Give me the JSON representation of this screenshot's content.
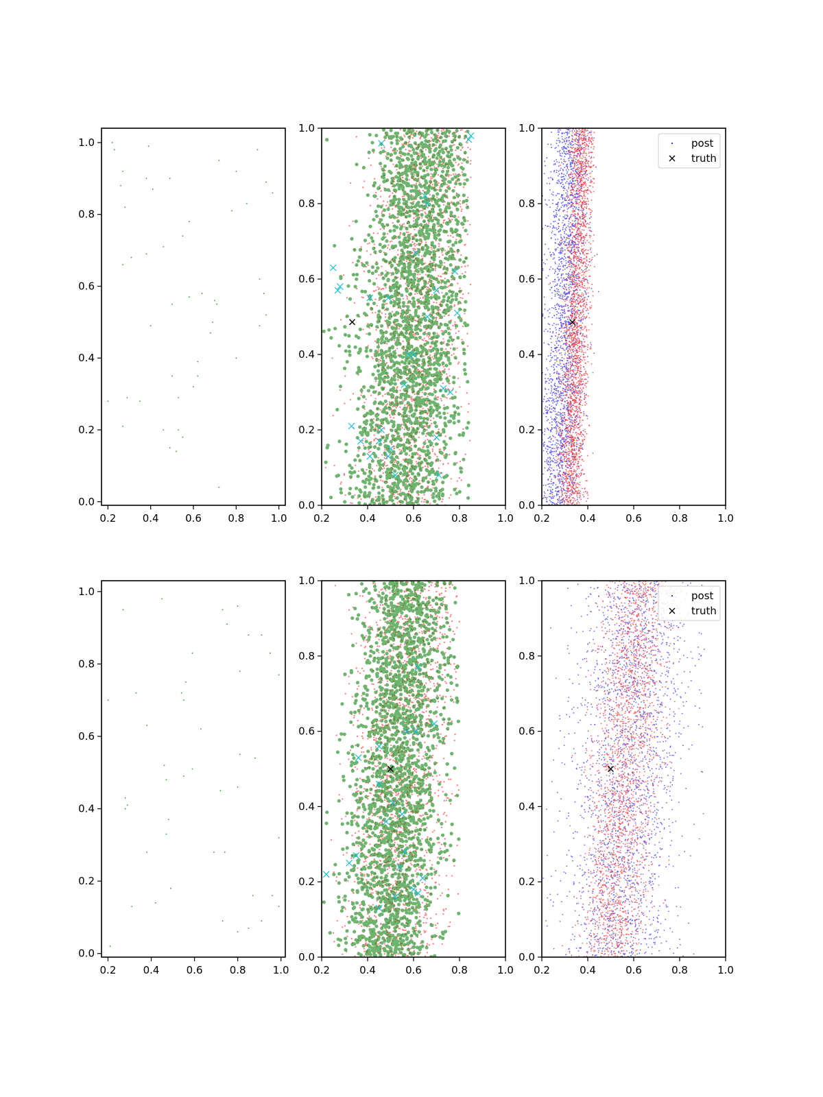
{
  "chart_data": [
    {
      "id": "top-left",
      "type": "scatter",
      "xlim": [
        0.17,
        1.03
      ],
      "ylim": [
        -0.01,
        1.04
      ],
      "xticks": [
        "0.2",
        "0.4",
        "0.6",
        "0.8",
        "1.0"
      ],
      "yticks": [
        "0.0",
        "0.2",
        "0.4",
        "0.6",
        "0.8",
        "1.0"
      ],
      "series": [
        {
          "color": "#2ca02c",
          "marker": "dot",
          "seed": 11,
          "points": [
            [
              0.22,
              1.0
            ],
            [
              0.23,
              0.98
            ],
            [
              0.39,
              0.99
            ],
            [
              0.9,
              0.98
            ],
            [
              0.72,
              0.95
            ],
            [
              0.27,
              0.92
            ],
            [
              0.49,
              0.9
            ],
            [
              0.94,
              0.89
            ],
            [
              0.8,
              0.92
            ],
            [
              0.26,
              0.88
            ],
            [
              0.38,
              0.9
            ],
            [
              0.41,
              0.87
            ],
            [
              0.97,
              0.86
            ],
            [
              0.85,
              0.83
            ],
            [
              0.28,
              0.82
            ],
            [
              0.78,
              0.81
            ],
            [
              0.58,
              0.78
            ],
            [
              0.46,
              0.71
            ],
            [
              0.55,
              0.74
            ],
            [
              0.31,
              0.68
            ],
            [
              0.38,
              0.69
            ],
            [
              0.27,
              0.66
            ],
            [
              0.91,
              0.62
            ],
            [
              0.93,
              0.58
            ],
            [
              0.64,
              0.58
            ],
            [
              0.58,
              0.57
            ],
            [
              0.5,
              0.55
            ],
            [
              0.7,
              0.56
            ],
            [
              0.71,
              0.55
            ],
            [
              0.94,
              0.52
            ],
            [
              0.69,
              0.5
            ],
            [
              0.4,
              0.49
            ],
            [
              0.68,
              0.47
            ],
            [
              0.91,
              0.49
            ],
            [
              0.8,
              0.4
            ],
            [
              0.62,
              0.39
            ],
            [
              0.62,
              0.35
            ],
            [
              0.5,
              0.35
            ],
            [
              0.6,
              0.32
            ],
            [
              0.2,
              0.28
            ],
            [
              0.29,
              0.29
            ],
            [
              0.35,
              0.28
            ],
            [
              0.53,
              0.29
            ],
            [
              0.27,
              0.21
            ],
            [
              0.46,
              0.2
            ],
            [
              0.53,
              0.2
            ],
            [
              0.55,
              0.18
            ],
            [
              0.49,
              0.15
            ],
            [
              0.52,
              0.14
            ],
            [
              0.72,
              0.04
            ]
          ]
        }
      ]
    },
    {
      "id": "top-middle",
      "type": "scatter",
      "xlim": [
        0.2,
        1.0
      ],
      "ylim": [
        0.0,
        1.0
      ],
      "xticks": [
        "0.2",
        "0.4",
        "0.6",
        "0.8",
        "1.0"
      ],
      "yticks": [
        "0.0",
        "0.2",
        "0.4",
        "0.6",
        "0.8",
        "1.0"
      ],
      "series": [
        {
          "color": "#ff3b3b",
          "marker": "dot",
          "size": 1.1,
          "opacity": 0.7,
          "n": 1800,
          "x_center": 0.62,
          "x_spread": 0.12,
          "x_min": 0.2,
          "x_max": 0.85,
          "slope": 0.12,
          "seed": 21
        },
        {
          "color": "#228b22",
          "marker": "circle",
          "size": 2.6,
          "opacity": 0.65,
          "n": 2100,
          "x_center": 0.6,
          "x_spread": 0.12,
          "x_min": 0.2,
          "x_max": 0.84,
          "slope": 0.12,
          "seed": 22
        },
        {
          "color": "#17becf",
          "marker": "x",
          "seed": 23,
          "points": [
            [
              0.46,
              0.96
            ],
            [
              0.85,
              0.98
            ],
            [
              0.84,
              0.97
            ],
            [
              0.25,
              0.63
            ],
            [
              0.28,
              0.58
            ],
            [
              0.27,
              0.57
            ],
            [
              0.41,
              0.55
            ],
            [
              0.49,
              0.55
            ],
            [
              0.65,
              0.82
            ],
            [
              0.66,
              0.8
            ],
            [
              0.61,
              0.67
            ],
            [
              0.78,
              0.62
            ],
            [
              0.7,
              0.57
            ],
            [
              0.66,
              0.5
            ],
            [
              0.79,
              0.51
            ],
            [
              0.58,
              0.4
            ],
            [
              0.6,
              0.4
            ],
            [
              0.56,
              0.32
            ],
            [
              0.73,
              0.31
            ],
            [
              0.76,
              0.3
            ],
            [
              0.33,
              0.21
            ],
            [
              0.46,
              0.2
            ],
            [
              0.37,
              0.17
            ],
            [
              0.45,
              0.17
            ],
            [
              0.5,
              0.15
            ],
            [
              0.41,
              0.13
            ],
            [
              0.49,
              0.13
            ],
            [
              0.52,
              0.08
            ],
            [
              0.7,
              0.18
            ],
            [
              0.71,
              0.08
            ]
          ]
        },
        {
          "color": "#000000",
          "marker": "x",
          "name": "truth",
          "points": [
            [
              0.333,
              0.486
            ]
          ]
        }
      ]
    },
    {
      "id": "top-right",
      "type": "scatter",
      "xlim": [
        0.2,
        1.0
      ],
      "ylim": [
        0.0,
        1.0
      ],
      "xticks": [
        "0.2",
        "0.4",
        "0.6",
        "0.8",
        "1.0"
      ],
      "yticks": [
        "0.0",
        "0.2",
        "0.4",
        "0.6",
        "0.8",
        "1.0"
      ],
      "legend": {
        "position": "top-right",
        "entries": [
          "post",
          "truth"
        ]
      },
      "series": [
        {
          "color": "#2222ff",
          "marker": "dot",
          "size": 0.9,
          "opacity": 0.75,
          "n": 2200,
          "name": "post",
          "x_center": 0.3,
          "x_spread": 0.045,
          "x_min": 0.2,
          "x_max": 0.45,
          "slope": 0.05,
          "seed": 31
        },
        {
          "color": "#ff2020",
          "marker": "dot",
          "size": 0.9,
          "opacity": 0.75,
          "n": 2200,
          "x_center": 0.35,
          "x_spread": 0.03,
          "x_min": 0.2,
          "x_max": 0.43,
          "slope": 0.05,
          "seed": 32
        },
        {
          "color": "#000000",
          "marker": "x",
          "name": "truth",
          "points": [
            [
              0.333,
              0.486
            ]
          ]
        }
      ]
    },
    {
      "id": "bottom-left",
      "type": "scatter",
      "xlim": [
        0.17,
        1.02
      ],
      "ylim": [
        -0.01,
        1.03
      ],
      "xticks": [
        "0.2",
        "0.4",
        "0.6",
        "0.8",
        "1.0"
      ],
      "yticks": [
        "0.0",
        "0.2",
        "0.4",
        "0.6",
        "0.8",
        "1.0"
      ],
      "series": [
        {
          "color": "#2ca02c",
          "marker": "dot",
          "seed": 41,
          "points": [
            [
              0.27,
              0.95
            ],
            [
              0.45,
              0.98
            ],
            [
              0.73,
              0.95
            ],
            [
              0.8,
              0.96
            ],
            [
              0.75,
              0.91
            ],
            [
              0.91,
              0.88
            ],
            [
              0.95,
              0.83
            ],
            [
              0.85,
              0.88
            ],
            [
              0.59,
              0.83
            ],
            [
              0.81,
              0.78
            ],
            [
              0.99,
              0.77
            ],
            [
              0.56,
              0.75
            ],
            [
              0.33,
              0.72
            ],
            [
              0.54,
              0.72
            ],
            [
              0.55,
              0.7
            ],
            [
              0.2,
              0.7
            ],
            [
              0.38,
              0.63
            ],
            [
              0.63,
              0.62
            ],
            [
              0.81,
              0.55
            ],
            [
              0.88,
              0.54
            ],
            [
              0.46,
              0.52
            ],
            [
              0.59,
              0.51
            ],
            [
              0.55,
              0.49
            ],
            [
              0.47,
              0.48
            ],
            [
              0.8,
              0.46
            ],
            [
              0.28,
              0.43
            ],
            [
              0.29,
              0.41
            ],
            [
              0.28,
              0.4
            ],
            [
              0.72,
              0.45
            ],
            [
              0.48,
              0.37
            ],
            [
              0.47,
              0.33
            ],
            [
              0.99,
              0.32
            ],
            [
              0.69,
              0.28
            ],
            [
              0.74,
              0.28
            ],
            [
              0.38,
              0.28
            ],
            [
              0.49,
              0.18
            ],
            [
              0.42,
              0.14
            ],
            [
              0.31,
              0.13
            ],
            [
              0.87,
              0.16
            ],
            [
              0.96,
              0.16
            ],
            [
              0.99,
              0.13
            ],
            [
              0.73,
              0.09
            ],
            [
              0.91,
              0.09
            ],
            [
              0.85,
              0.07
            ],
            [
              0.8,
              0.06
            ],
            [
              0.21,
              0.02
            ]
          ]
        }
      ]
    },
    {
      "id": "bottom-middle",
      "type": "scatter",
      "xlim": [
        0.2,
        1.0
      ],
      "ylim": [
        0.0,
        1.0
      ],
      "xticks": [
        "0.2",
        "0.4",
        "0.6",
        "0.8",
        "1.0"
      ],
      "yticks": [
        "0.0",
        "0.2",
        "0.4",
        "0.6",
        "0.8",
        "1.0"
      ],
      "series": [
        {
          "color": "#ff3b3b",
          "marker": "dot",
          "size": 1.1,
          "opacity": 0.7,
          "n": 1800,
          "x_center": 0.55,
          "x_spread": 0.11,
          "x_min": 0.2,
          "x_max": 0.8,
          "slope": 0.1,
          "seed": 51
        },
        {
          "color": "#228b22",
          "marker": "circle",
          "size": 2.6,
          "opacity": 0.65,
          "n": 2100,
          "x_center": 0.53,
          "x_spread": 0.1,
          "x_min": 0.2,
          "x_max": 0.8,
          "slope": 0.1,
          "seed": 52
        },
        {
          "color": "#17becf",
          "marker": "x",
          "seed": 53,
          "points": [
            [
              0.22,
              0.22
            ],
            [
              0.32,
              0.25
            ],
            [
              0.36,
              0.53
            ],
            [
              0.45,
              0.56
            ],
            [
              0.62,
              0.77
            ],
            [
              0.61,
              0.6
            ],
            [
              0.69,
              0.62
            ],
            [
              0.57,
              0.6
            ],
            [
              0.45,
              0.46
            ],
            [
              0.51,
              0.41
            ],
            [
              0.55,
              0.38
            ],
            [
              0.48,
              0.36
            ],
            [
              0.56,
              0.28
            ],
            [
              0.54,
              0.24
            ],
            [
              0.45,
              0.13
            ],
            [
              0.62,
              0.17
            ],
            [
              0.64,
              0.21
            ],
            [
              0.6,
              0.18
            ],
            [
              0.52,
              0.16
            ],
            [
              0.35,
              0.27
            ]
          ]
        },
        {
          "color": "#000000",
          "marker": "x",
          "name": "truth",
          "points": [
            [
              0.5,
              0.5
            ]
          ]
        }
      ]
    },
    {
      "id": "bottom-right",
      "type": "scatter",
      "xlim": [
        0.2,
        1.0
      ],
      "ylim": [
        0.0,
        1.0
      ],
      "xticks": [
        "0.2",
        "0.4",
        "0.6",
        "0.8",
        "1.0"
      ],
      "yticks": [
        "0.0",
        "0.2",
        "0.4",
        "0.6",
        "0.8",
        "1.0"
      ],
      "legend": {
        "position": "top-right",
        "entries": [
          "post",
          "truth"
        ]
      },
      "series": [
        {
          "color": "#2222ff",
          "marker": "dot",
          "size": 0.9,
          "opacity": 0.7,
          "n": 2200,
          "name": "post",
          "x_center": 0.58,
          "x_spread": 0.13,
          "x_min": 0.2,
          "x_max": 0.92,
          "slope": 0.12,
          "seed": 61
        },
        {
          "color": "#ff2020",
          "marker": "dot",
          "size": 0.9,
          "opacity": 0.7,
          "n": 2200,
          "x_center": 0.56,
          "x_spread": 0.07,
          "x_min": 0.2,
          "x_max": 0.82,
          "slope": 0.12,
          "seed": 62
        },
        {
          "color": "#000000",
          "marker": "x",
          "name": "truth",
          "points": [
            [
              0.5,
              0.5
            ]
          ]
        }
      ]
    }
  ]
}
